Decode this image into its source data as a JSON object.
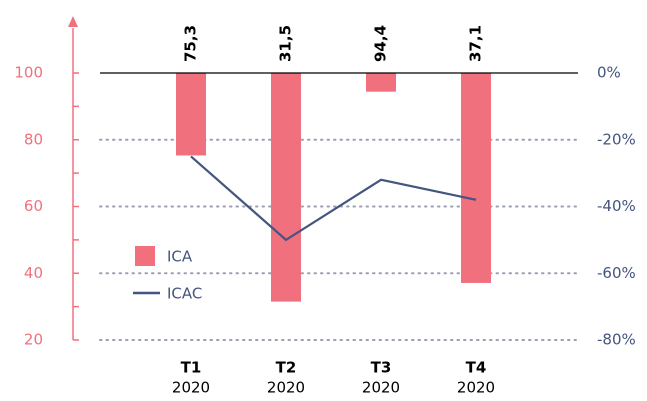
{
  "chart_data": {
    "type": "bar",
    "categories": [
      [
        "T1",
        "2020"
      ],
      [
        "T2",
        "2020"
      ],
      [
        "T3",
        "2020"
      ],
      [
        "T4",
        "2020"
      ]
    ],
    "series": [
      {
        "name": "ICA",
        "color": "#f0717d",
        "values": [
          75.3,
          31.5,
          94.4,
          37.1
        ],
        "value_labels": [
          "75,3",
          "31,5",
          "94,4",
          "37,1"
        ]
      },
      {
        "name": "ICAC",
        "type": "line",
        "axis": "y2",
        "color": "#44557f",
        "values": [
          -25,
          -50,
          -32,
          -38
        ]
      }
    ],
    "ylim": [
      20,
      100
    ],
    "yticks": [
      20,
      40,
      60,
      80,
      100
    ],
    "y2lim": [
      -80,
      0
    ],
    "y2ticks": [
      {
        "value": 0,
        "label": "0%"
      },
      {
        "value": -20,
        "label": "-20%"
      },
      {
        "value": -40,
        "label": "-40%"
      },
      {
        "value": -60,
        "label": "-60%"
      },
      {
        "value": -80,
        "label": "-80%"
      }
    ],
    "grid": true,
    "legend": "left"
  }
}
